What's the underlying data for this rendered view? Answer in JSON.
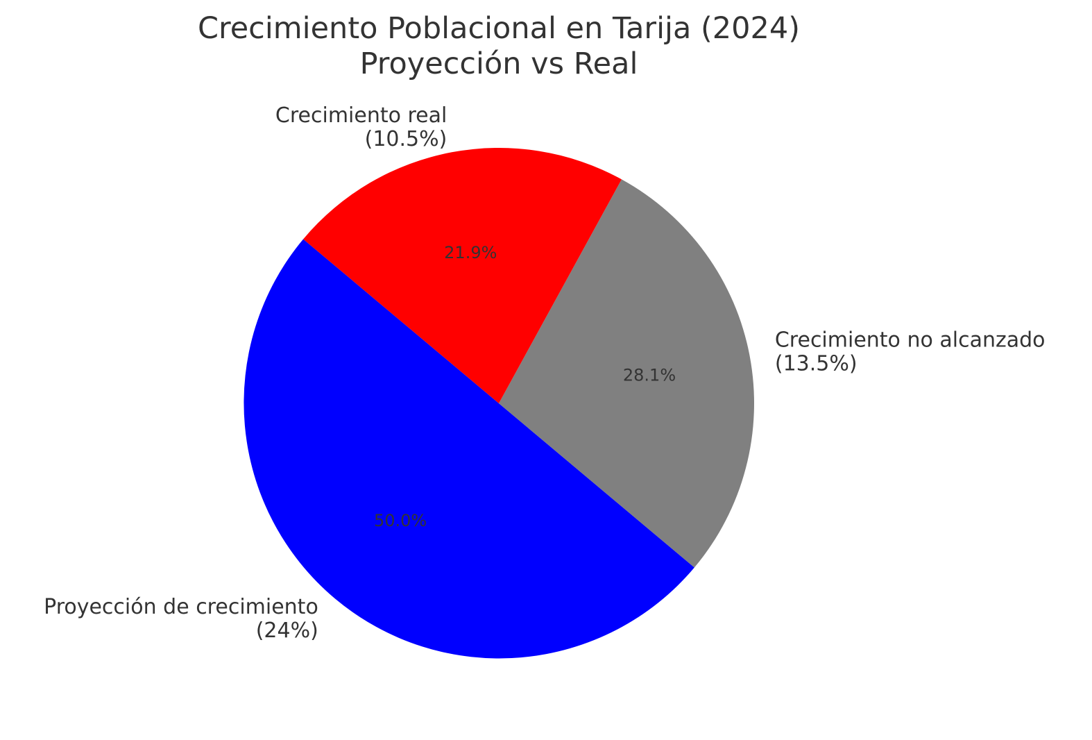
{
  "chart_data": {
    "type": "pie",
    "title_lines": [
      "Crecimiento Poblacional en Tarija (2024)",
      "Proyección vs Real"
    ],
    "start_angle_deg": 140,
    "direction": "counterclockwise",
    "slices": [
      {
        "label_lines": [
          "Proyección de crecimiento",
          "(24%)"
        ],
        "value": 24,
        "percent_label": "50.0%",
        "color": "#0000ff"
      },
      {
        "label_lines": [
          "Crecimiento no alcanzado",
          "(13.5%)"
        ],
        "value": 13.5,
        "percent_label": "28.1%",
        "color": "#808080"
      },
      {
        "label_lines": [
          "Crecimiento real",
          "(10.5%)"
        ],
        "value": 10.5,
        "percent_label": "21.9%",
        "color": "#ff0000"
      }
    ]
  }
}
